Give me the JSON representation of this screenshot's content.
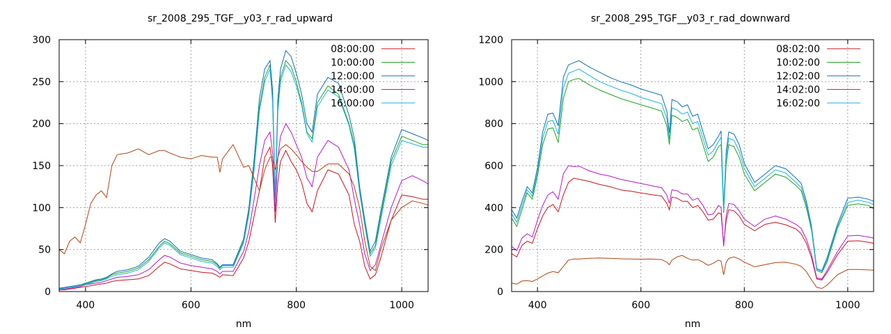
{
  "chart_data": [
    {
      "type": "line",
      "title": "sr_2008_295_TGF__y03_r_rad_upward",
      "xlabel": "nm",
      "ylabel": "",
      "xlim": [
        350,
        1050
      ],
      "ylim": [
        0,
        300
      ],
      "xticks": [
        400,
        600,
        800,
        1000
      ],
      "yticks": [
        0,
        50,
        100,
        150,
        200,
        250,
        300
      ],
      "grid": true,
      "legend_position": "top-right",
      "x": [
        350,
        360,
        370,
        380,
        390,
        400,
        410,
        420,
        430,
        440,
        450,
        460,
        480,
        500,
        520,
        540,
        550,
        560,
        580,
        600,
        620,
        640,
        650,
        655,
        660,
        680,
        700,
        710,
        720,
        730,
        740,
        750,
        755,
        760,
        765,
        770,
        780,
        790,
        800,
        810,
        820,
        830,
        840,
        860,
        880,
        900,
        910,
        920,
        930,
        940,
        950,
        960,
        980,
        1000,
        1020,
        1040,
        1050
      ],
      "series": [
        {
          "name": "08:00:00",
          "color": "#c8141e",
          "values": [
            2,
            2,
            3,
            4,
            5,
            6,
            7,
            8,
            9,
            10,
            12,
            13,
            14,
            15,
            19,
            30,
            35,
            33,
            27,
            25,
            23,
            22,
            19,
            17,
            20,
            19,
            40,
            60,
            90,
            120,
            160,
            172,
            150,
            82,
            130,
            155,
            168,
            155,
            145,
            130,
            105,
            95,
            120,
            145,
            140,
            115,
            80,
            60,
            30,
            15,
            20,
            40,
            85,
            115,
            113,
            110,
            110
          ]
        },
        {
          "name": "10:00:00",
          "color": "#1fa21f",
          "values": [
            4,
            4,
            5,
            6,
            7,
            9,
            11,
            13,
            14,
            16,
            20,
            22,
            24,
            28,
            38,
            54,
            60,
            57,
            46,
            42,
            38,
            36,
            32,
            28,
            31,
            31,
            60,
            95,
            150,
            220,
            255,
            270,
            230,
            108,
            220,
            255,
            275,
            268,
            250,
            225,
            190,
            182,
            225,
            245,
            235,
            200,
            175,
            120,
            80,
            45,
            55,
            90,
            155,
            185,
            180,
            175,
            175
          ]
        },
        {
          "name": "12:00:00",
          "color": "#0c6fb6",
          "values": [
            4,
            5,
            6,
            7,
            8,
            10,
            12,
            14,
            15,
            17,
            21,
            24,
            26,
            30,
            41,
            58,
            63,
            60,
            48,
            44,
            40,
            38,
            33,
            29,
            32,
            32,
            63,
            100,
            158,
            230,
            265,
            275,
            240,
            110,
            230,
            265,
            287,
            280,
            260,
            235,
            200,
            190,
            235,
            255,
            248,
            210,
            182,
            125,
            85,
            48,
            60,
            95,
            160,
            193,
            188,
            183,
            180
          ]
        },
        {
          "name": "14:00:00",
          "color": "#b519c8",
          "values": [
            3,
            3,
            4,
            5,
            6,
            8,
            9,
            10,
            11,
            13,
            15,
            17,
            18,
            20,
            26,
            38,
            43,
            41,
            34,
            31,
            29,
            27,
            24,
            21,
            24,
            24,
            48,
            72,
            110,
            150,
            180,
            190,
            165,
            95,
            160,
            185,
            200,
            190,
            175,
            160,
            135,
            125,
            160,
            180,
            172,
            145,
            110,
            80,
            45,
            25,
            32,
            55,
            100,
            132,
            138,
            132,
            128
          ]
        },
        {
          "name": "16:00:00",
          "color": "#18b4e0",
          "values": [
            3,
            4,
            5,
            6,
            7,
            8,
            10,
            12,
            13,
            15,
            18,
            20,
            22,
            26,
            36,
            52,
            58,
            55,
            44,
            40,
            36,
            34,
            30,
            26,
            29,
            29,
            58,
            92,
            145,
            215,
            250,
            265,
            225,
            105,
            215,
            250,
            270,
            262,
            245,
            222,
            188,
            178,
            220,
            240,
            232,
            198,
            170,
            118,
            78,
            42,
            52,
            85,
            150,
            180,
            176,
            172,
            172
          ]
        },
        {
          "name": "",
          "color": "#b4420f",
          "values": [
            50,
            45,
            60,
            65,
            58,
            80,
            105,
            115,
            120,
            112,
            150,
            163,
            165,
            170,
            163,
            168,
            168,
            165,
            160,
            158,
            162,
            160,
            160,
            142,
            158,
            175,
            148,
            150,
            135,
            120,
            145,
            160,
            160,
            145,
            160,
            170,
            175,
            170,
            163,
            155,
            148,
            143,
            143,
            152,
            152,
            140,
            125,
            100,
            60,
            30,
            25,
            50,
            85,
            100,
            108,
            105,
            103
          ]
        }
      ]
    },
    {
      "type": "line",
      "title": "sr_2008_295_TGF__y03_r_rad_downward",
      "xlabel": "nm",
      "ylabel": "",
      "xlim": [
        350,
        1050
      ],
      "ylim": [
        0,
        1200
      ],
      "xticks": [
        400,
        600,
        800,
        1000
      ],
      "yticks": [
        0,
        200,
        400,
        600,
        800,
        1000,
        1200
      ],
      "grid": true,
      "legend_position": "top-right",
      "x": [
        350,
        360,
        370,
        380,
        390,
        400,
        410,
        420,
        430,
        440,
        450,
        460,
        470,
        480,
        500,
        520,
        540,
        560,
        580,
        600,
        620,
        640,
        650,
        655,
        660,
        670,
        680,
        690,
        700,
        710,
        720,
        730,
        740,
        750,
        755,
        760,
        765,
        770,
        780,
        790,
        800,
        820,
        840,
        860,
        880,
        900,
        910,
        920,
        930,
        940,
        950,
        960,
        980,
        1000,
        1020,
        1040,
        1050
      ],
      "series": [
        {
          "name": "08:02:00",
          "color": "#c8141e",
          "values": [
            180,
            165,
            220,
            240,
            230,
            300,
            360,
            400,
            415,
            380,
            460,
            520,
            540,
            535,
            525,
            510,
            500,
            485,
            478,
            470,
            462,
            455,
            420,
            390,
            450,
            445,
            430,
            430,
            400,
            410,
            380,
            340,
            345,
            375,
            370,
            225,
            340,
            390,
            385,
            360,
            320,
            290,
            320,
            330,
            318,
            298,
            275,
            230,
            160,
            60,
            55,
            90,
            175,
            240,
            242,
            235,
            230
          ]
        },
        {
          "name": "10:02:00",
          "color": "#1fa21f",
          "values": [
            350,
            310,
            390,
            470,
            440,
            550,
            700,
            775,
            780,
            710,
            920,
            1000,
            1010,
            1015,
            985,
            960,
            940,
            920,
            905,
            890,
            875,
            860,
            790,
            700,
            840,
            830,
            810,
            820,
            770,
            780,
            700,
            620,
            640,
            690,
            700,
            375,
            610,
            700,
            690,
            640,
            560,
            480,
            520,
            560,
            545,
            505,
            480,
            400,
            290,
            100,
            90,
            140,
            300,
            410,
            418,
            410,
            395
          ]
        },
        {
          "name": "12:02:00",
          "color": "#0c6fb6",
          "values": [
            390,
            350,
            430,
            500,
            470,
            590,
            760,
            845,
            850,
            790,
            1020,
            1080,
            1090,
            1100,
            1070,
            1045,
            1020,
            1000,
            985,
            965,
            950,
            935,
            860,
            755,
            915,
            905,
            880,
            890,
            835,
            845,
            760,
            680,
            700,
            740,
            765,
            400,
            670,
            760,
            750,
            700,
            610,
            520,
            560,
            600,
            585,
            540,
            515,
            430,
            310,
            110,
            100,
            160,
            320,
            445,
            450,
            440,
            430
          ]
        },
        {
          "name": "14:02:00",
          "color": "#b519c8",
          "values": [
            215,
            195,
            255,
            275,
            260,
            340,
            410,
            460,
            475,
            440,
            560,
            600,
            595,
            598,
            575,
            560,
            550,
            535,
            525,
            515,
            505,
            495,
            460,
            420,
            485,
            480,
            465,
            465,
            435,
            445,
            410,
            365,
            370,
            410,
            400,
            215,
            365,
            420,
            415,
            385,
            345,
            310,
            345,
            360,
            345,
            320,
            300,
            250,
            175,
            65,
            60,
            100,
            190,
            265,
            268,
            260,
            255
          ]
        },
        {
          "name": "16:02:00",
          "color": "#18b4e0",
          "values": [
            370,
            330,
            410,
            485,
            455,
            570,
            730,
            810,
            815,
            750,
            970,
            1040,
            1050,
            1060,
            1030,
            1000,
            980,
            960,
            945,
            925,
            910,
            895,
            825,
            725,
            875,
            865,
            845,
            855,
            800,
            810,
            730,
            650,
            670,
            715,
            735,
            385,
            640,
            730,
            720,
            670,
            585,
            500,
            540,
            580,
            565,
            520,
            495,
            415,
            300,
            105,
            95,
            150,
            310,
            425,
            435,
            425,
            415
          ]
        },
        {
          "name": "",
          "color": "#b4420f",
          "values": [
            40,
            35,
            50,
            52,
            48,
            60,
            75,
            88,
            95,
            90,
            120,
            150,
            155,
            155,
            158,
            160,
            158,
            156,
            155,
            154,
            155,
            152,
            140,
            128,
            150,
            165,
            172,
            158,
            150,
            152,
            140,
            125,
            135,
            150,
            145,
            80,
            140,
            158,
            165,
            155,
            140,
            118,
            128,
            138,
            140,
            130,
            120,
            95,
            55,
            20,
            15,
            30,
            80,
            105,
            105,
            103,
            102
          ]
        }
      ]
    }
  ]
}
